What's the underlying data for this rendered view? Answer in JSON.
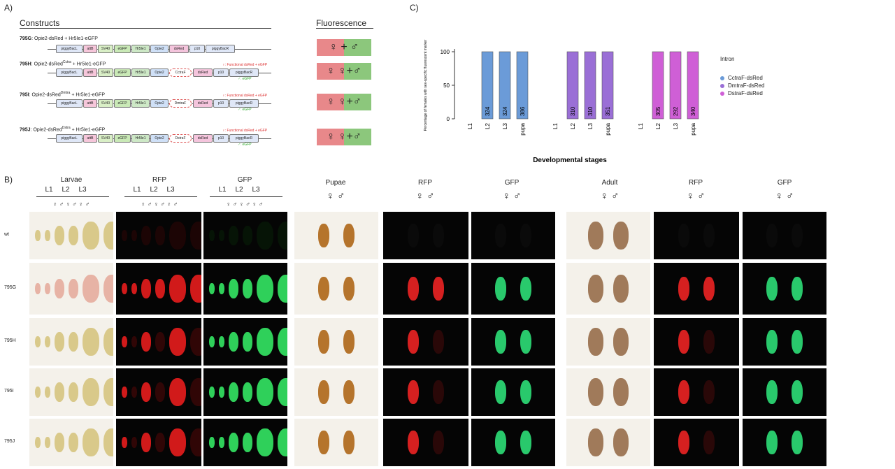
{
  "panels": {
    "a": "A)",
    "b": "B)",
    "c": "C)"
  },
  "constructs": {
    "title": "Constructs",
    "fluorescence_title": "Fluorescence",
    "items": [
      {
        "name": "795G",
        "desc": ": Opie2-dsRed + Hr5Ie1-eGFP",
        "fluor": "♀ + ♂",
        "note1": "",
        "note2": ""
      },
      {
        "name": "795H",
        "desc": ": Opie2-dsRed",
        "sup": "Cctra",
        "desc2": " + Hr5Ie1-eGFP",
        "fluor": "♀  ♀+♂",
        "note1": "♀: Functional dsRed + eGFP",
        "note2": "♂: eGFP"
      },
      {
        "name": "795I",
        "desc": ": Opie2-dsRed",
        "sup": "Dmtra",
        "desc2": " + Hr5Ie1-eGFP",
        "fluor": "♀  ♀+♂",
        "note1": "♀: Functional dsRed + eGFP",
        "note2": "♂: eGFP"
      },
      {
        "name": "795J",
        "desc": ": Opie2-dsRed",
        "sup": "Dstra",
        "desc2": " + Hr5Ie1-eGFP",
        "fluor": "♀  ♀+♂",
        "note1": "♀: Functional dsRed + eGFP",
        "note2": "♂: eGFP"
      }
    ],
    "segments_full": [
      "piggyBacL",
      "attB",
      "SV40",
      "eGFP",
      "Hr5Ie1",
      "Opie2",
      "dsRed",
      "p10",
      "piggyBacR"
    ],
    "intron_labels": [
      "CctraF",
      "DmtraF",
      "DstraF"
    ]
  },
  "chart_data": {
    "type": "bar",
    "ylabel": "Percentage of females with sex-specific fluorescent marker",
    "xlabel": "Developmental stages",
    "ylim": [
      0,
      100
    ],
    "yticks": [
      0,
      50,
      100
    ],
    "legend_title": "Intron",
    "legend_position": "right",
    "groups": [
      {
        "name": "CctraF-dsRed",
        "color": "#6b9bd8",
        "categories": [
          "L1",
          "L2",
          "L3",
          "pupa"
        ],
        "values": [
          0,
          100,
          100,
          100
        ],
        "n": [
          "",
          "324",
          "324",
          "386"
        ]
      },
      {
        "name": "DmtraF-dsRed",
        "color": "#9a6fd6",
        "categories": [
          "L1",
          "L2",
          "L3",
          "pupa"
        ],
        "values": [
          0,
          100,
          100,
          100
        ],
        "n": [
          "",
          "310",
          "310",
          "351"
        ]
      },
      {
        "name": "DstraF-dsRed",
        "color": "#cf5fd6",
        "categories": [
          "L1",
          "L2",
          "L3",
          "pupa"
        ],
        "values": [
          0,
          100,
          100,
          100
        ],
        "n": [
          "",
          "305",
          "292",
          "340"
        ]
      }
    ]
  },
  "imaging": {
    "headers": {
      "larvae": "Larvae",
      "rfp": "RFP",
      "gfp": "GFP",
      "pupae": "Pupae",
      "adult": "Adult",
      "stages": [
        "L1",
        "L2",
        "L3"
      ],
      "sex_pairs": "♀ ♂  ♀ ♂  ♀ ♂",
      "sex_pair": "♀  ♂"
    },
    "rows": [
      "wt",
      "795G",
      "795H",
      "795I",
      "795J"
    ]
  }
}
